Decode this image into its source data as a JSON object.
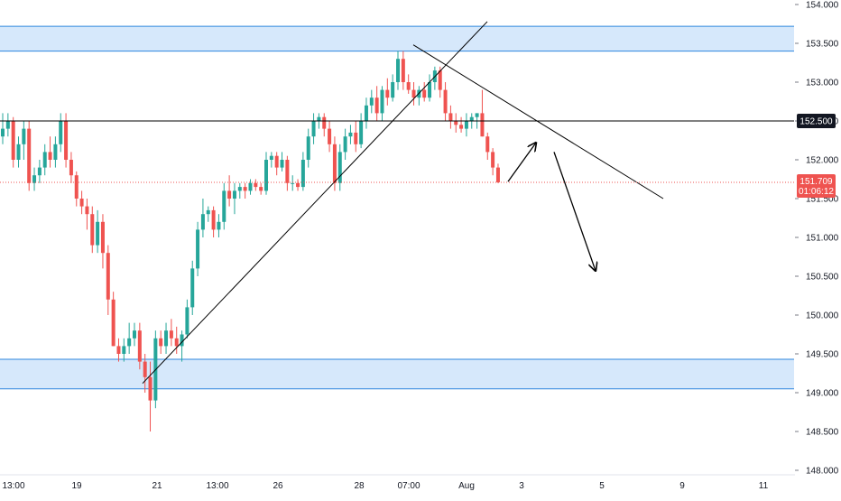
{
  "colors": {
    "up": "#26a69a",
    "down": "#ef5350",
    "zone_fill": "#d6e8fb",
    "zone_border": "#2e86de",
    "line": "#000000",
    "price_badge": "#ef5350",
    "level_badge": "#131722",
    "axis_text": "#131722"
  },
  "chart_data": {
    "type": "candlestick",
    "title": "",
    "ylim": [
      148.0,
      154.0
    ],
    "y_ticks": [
      "154.000",
      "153.500",
      "153.000",
      "152.500",
      "152.000",
      "151.500",
      "151.000",
      "150.500",
      "150.000",
      "149.500",
      "149.000",
      "148.500",
      "148.000"
    ],
    "x_ticks": [
      "13:00",
      "19",
      "21",
      "13:00",
      "26",
      "28",
      "07:00",
      "Aug",
      "3",
      "5",
      "9",
      "11"
    ],
    "grid": false,
    "current_price": {
      "value": 151.709,
      "label": "151.709",
      "countdown": "01:06:12"
    },
    "horizontal_level": {
      "value": 152.5,
      "label": "152.500"
    },
    "zones": [
      {
        "name": "resistance",
        "low": 153.4,
        "high": 153.72
      },
      {
        "name": "support",
        "low": 149.05,
        "high": 149.43
      }
    ],
    "trendlines": [
      {
        "name": "rising-trendline",
        "from": {
          "bar": 0,
          "price": 149.12
        },
        "to": {
          "bar": 94,
          "price": 153.78
        }
      },
      {
        "name": "falling-trendline",
        "from": {
          "bar": 0,
          "price": 153.48
        },
        "to": {
          "bar": 94,
          "price": 151.5
        }
      }
    ],
    "arrows": [
      {
        "name": "up-arrow",
        "from": {
          "price": 151.72
        },
        "to": {
          "price": 152.22
        }
      },
      {
        "name": "down-arrow",
        "from": {
          "price": 152.1
        },
        "to": {
          "price": 150.57
        }
      }
    ],
    "candles": [
      [
        152.3,
        152.6,
        152.2,
        152.4
      ],
      [
        152.4,
        152.6,
        152.3,
        152.5
      ],
      [
        152.5,
        152.55,
        151.9,
        152.0
      ],
      [
        152.0,
        152.3,
        151.9,
        152.2
      ],
      [
        152.2,
        152.5,
        152.0,
        152.4
      ],
      [
        152.4,
        152.5,
        151.6,
        151.7
      ],
      [
        151.7,
        151.9,
        151.6,
        151.8
      ],
      [
        151.8,
        152.0,
        151.7,
        151.9
      ],
      [
        151.9,
        152.2,
        151.8,
        152.1
      ],
      [
        152.1,
        152.3,
        151.9,
        152.0
      ],
      [
        152.0,
        152.3,
        151.9,
        152.2
      ],
      [
        152.2,
        152.6,
        152.1,
        152.5
      ],
      [
        152.5,
        152.6,
        151.9,
        152.0
      ],
      [
        152.0,
        152.1,
        151.7,
        151.8
      ],
      [
        151.8,
        151.85,
        151.4,
        151.5
      ],
      [
        151.5,
        151.6,
        151.3,
        151.4
      ],
      [
        151.4,
        151.5,
        151.1,
        151.3
      ],
      [
        151.3,
        151.4,
        150.8,
        150.9
      ],
      [
        150.9,
        151.35,
        150.8,
        151.2
      ],
      [
        151.2,
        151.3,
        150.6,
        150.8
      ],
      [
        150.8,
        150.9,
        150.0,
        150.2
      ],
      [
        150.2,
        150.3,
        149.6,
        149.6
      ],
      [
        149.6,
        149.7,
        149.4,
        149.5
      ],
      [
        149.5,
        149.7,
        149.4,
        149.6
      ],
      [
        149.6,
        149.9,
        149.5,
        149.7
      ],
      [
        149.7,
        149.9,
        149.6,
        149.8
      ],
      [
        149.8,
        149.9,
        149.3,
        149.4
      ],
      [
        149.4,
        149.5,
        149.0,
        149.2
      ],
      [
        149.2,
        149.4,
        148.5,
        148.9
      ],
      [
        148.9,
        149.8,
        148.8,
        149.7
      ],
      [
        149.7,
        149.8,
        149.5,
        149.6
      ],
      [
        149.6,
        149.9,
        149.5,
        149.8
      ],
      [
        149.8,
        149.95,
        149.6,
        149.7
      ],
      [
        149.7,
        149.85,
        149.5,
        149.6
      ],
      [
        149.6,
        149.8,
        149.4,
        149.75
      ],
      [
        149.75,
        150.2,
        149.7,
        150.1
      ],
      [
        150.1,
        150.7,
        150.0,
        150.6
      ],
      [
        150.6,
        151.2,
        150.5,
        151.1
      ],
      [
        151.1,
        151.5,
        151.0,
        151.3
      ],
      [
        151.3,
        151.4,
        151.2,
        151.35
      ],
      [
        151.35,
        151.4,
        151.0,
        151.1
      ],
      [
        151.1,
        151.3,
        151.0,
        151.2
      ],
      [
        151.2,
        151.7,
        151.1,
        151.6
      ],
      [
        151.6,
        151.8,
        151.4,
        151.5
      ],
      [
        151.5,
        151.7,
        151.3,
        151.6
      ],
      [
        151.6,
        151.7,
        151.5,
        151.65
      ],
      [
        151.65,
        151.7,
        151.5,
        151.6
      ],
      [
        151.6,
        151.75,
        151.55,
        151.7
      ],
      [
        151.7,
        151.75,
        151.6,
        151.65
      ],
      [
        151.65,
        151.7,
        151.55,
        151.6
      ],
      [
        151.6,
        152.1,
        151.55,
        152.0
      ],
      [
        152.0,
        152.1,
        151.9,
        152.05
      ],
      [
        152.05,
        152.1,
        151.8,
        151.9
      ],
      [
        151.9,
        152.1,
        151.85,
        152.0
      ],
      [
        152.0,
        152.05,
        151.6,
        151.7
      ],
      [
        151.7,
        151.8,
        151.6,
        151.7
      ],
      [
        151.7,
        151.75,
        151.6,
        151.65
      ],
      [
        151.65,
        152.1,
        151.6,
        152.0
      ],
      [
        152.0,
        152.4,
        151.9,
        152.3
      ],
      [
        152.3,
        152.6,
        152.2,
        152.5
      ],
      [
        152.5,
        152.6,
        152.4,
        152.55
      ],
      [
        152.55,
        152.6,
        152.3,
        152.4
      ],
      [
        152.4,
        152.5,
        152.1,
        152.2
      ],
      [
        152.2,
        152.3,
        151.6,
        151.7
      ],
      [
        151.7,
        152.2,
        151.6,
        152.1
      ],
      [
        152.1,
        152.4,
        152.0,
        152.3
      ],
      [
        152.3,
        152.45,
        152.2,
        152.35
      ],
      [
        152.35,
        152.5,
        152.1,
        152.2
      ],
      [
        152.2,
        152.6,
        152.15,
        152.5
      ],
      [
        152.5,
        152.8,
        152.4,
        152.7
      ],
      [
        152.7,
        152.9,
        152.6,
        152.8
      ],
      [
        152.8,
        152.95,
        152.5,
        152.6
      ],
      [
        152.6,
        152.95,
        152.5,
        152.9
      ],
      [
        152.9,
        153.05,
        152.7,
        152.8
      ],
      [
        152.8,
        153.1,
        152.75,
        153.0
      ],
      [
        153.0,
        153.4,
        152.9,
        153.3
      ],
      [
        153.3,
        153.4,
        152.9,
        153.0
      ],
      [
        153.0,
        153.1,
        152.85,
        152.9
      ],
      [
        152.9,
        153.0,
        152.7,
        152.8
      ],
      [
        152.8,
        152.95,
        152.7,
        152.9
      ],
      [
        152.9,
        153.0,
        152.75,
        152.8
      ],
      [
        152.8,
        153.1,
        152.75,
        153.0
      ],
      [
        153.0,
        153.2,
        152.9,
        153.15
      ],
      [
        153.15,
        153.2,
        152.8,
        152.9
      ],
      [
        152.9,
        153.0,
        152.5,
        152.6
      ],
      [
        152.6,
        152.7,
        152.4,
        152.5
      ],
      [
        152.5,
        152.6,
        152.35,
        152.45
      ],
      [
        152.45,
        152.55,
        152.35,
        152.4
      ],
      [
        152.4,
        152.6,
        152.3,
        152.5
      ],
      [
        152.5,
        152.6,
        152.4,
        152.55
      ],
      [
        152.55,
        152.6,
        152.4,
        152.6
      ],
      [
        152.6,
        152.9,
        152.3,
        152.3
      ],
      [
        152.3,
        152.35,
        152.0,
        152.1
      ],
      [
        152.1,
        152.15,
        151.8,
        151.9
      ],
      [
        151.9,
        151.95,
        151.7,
        151.71
      ]
    ]
  }
}
